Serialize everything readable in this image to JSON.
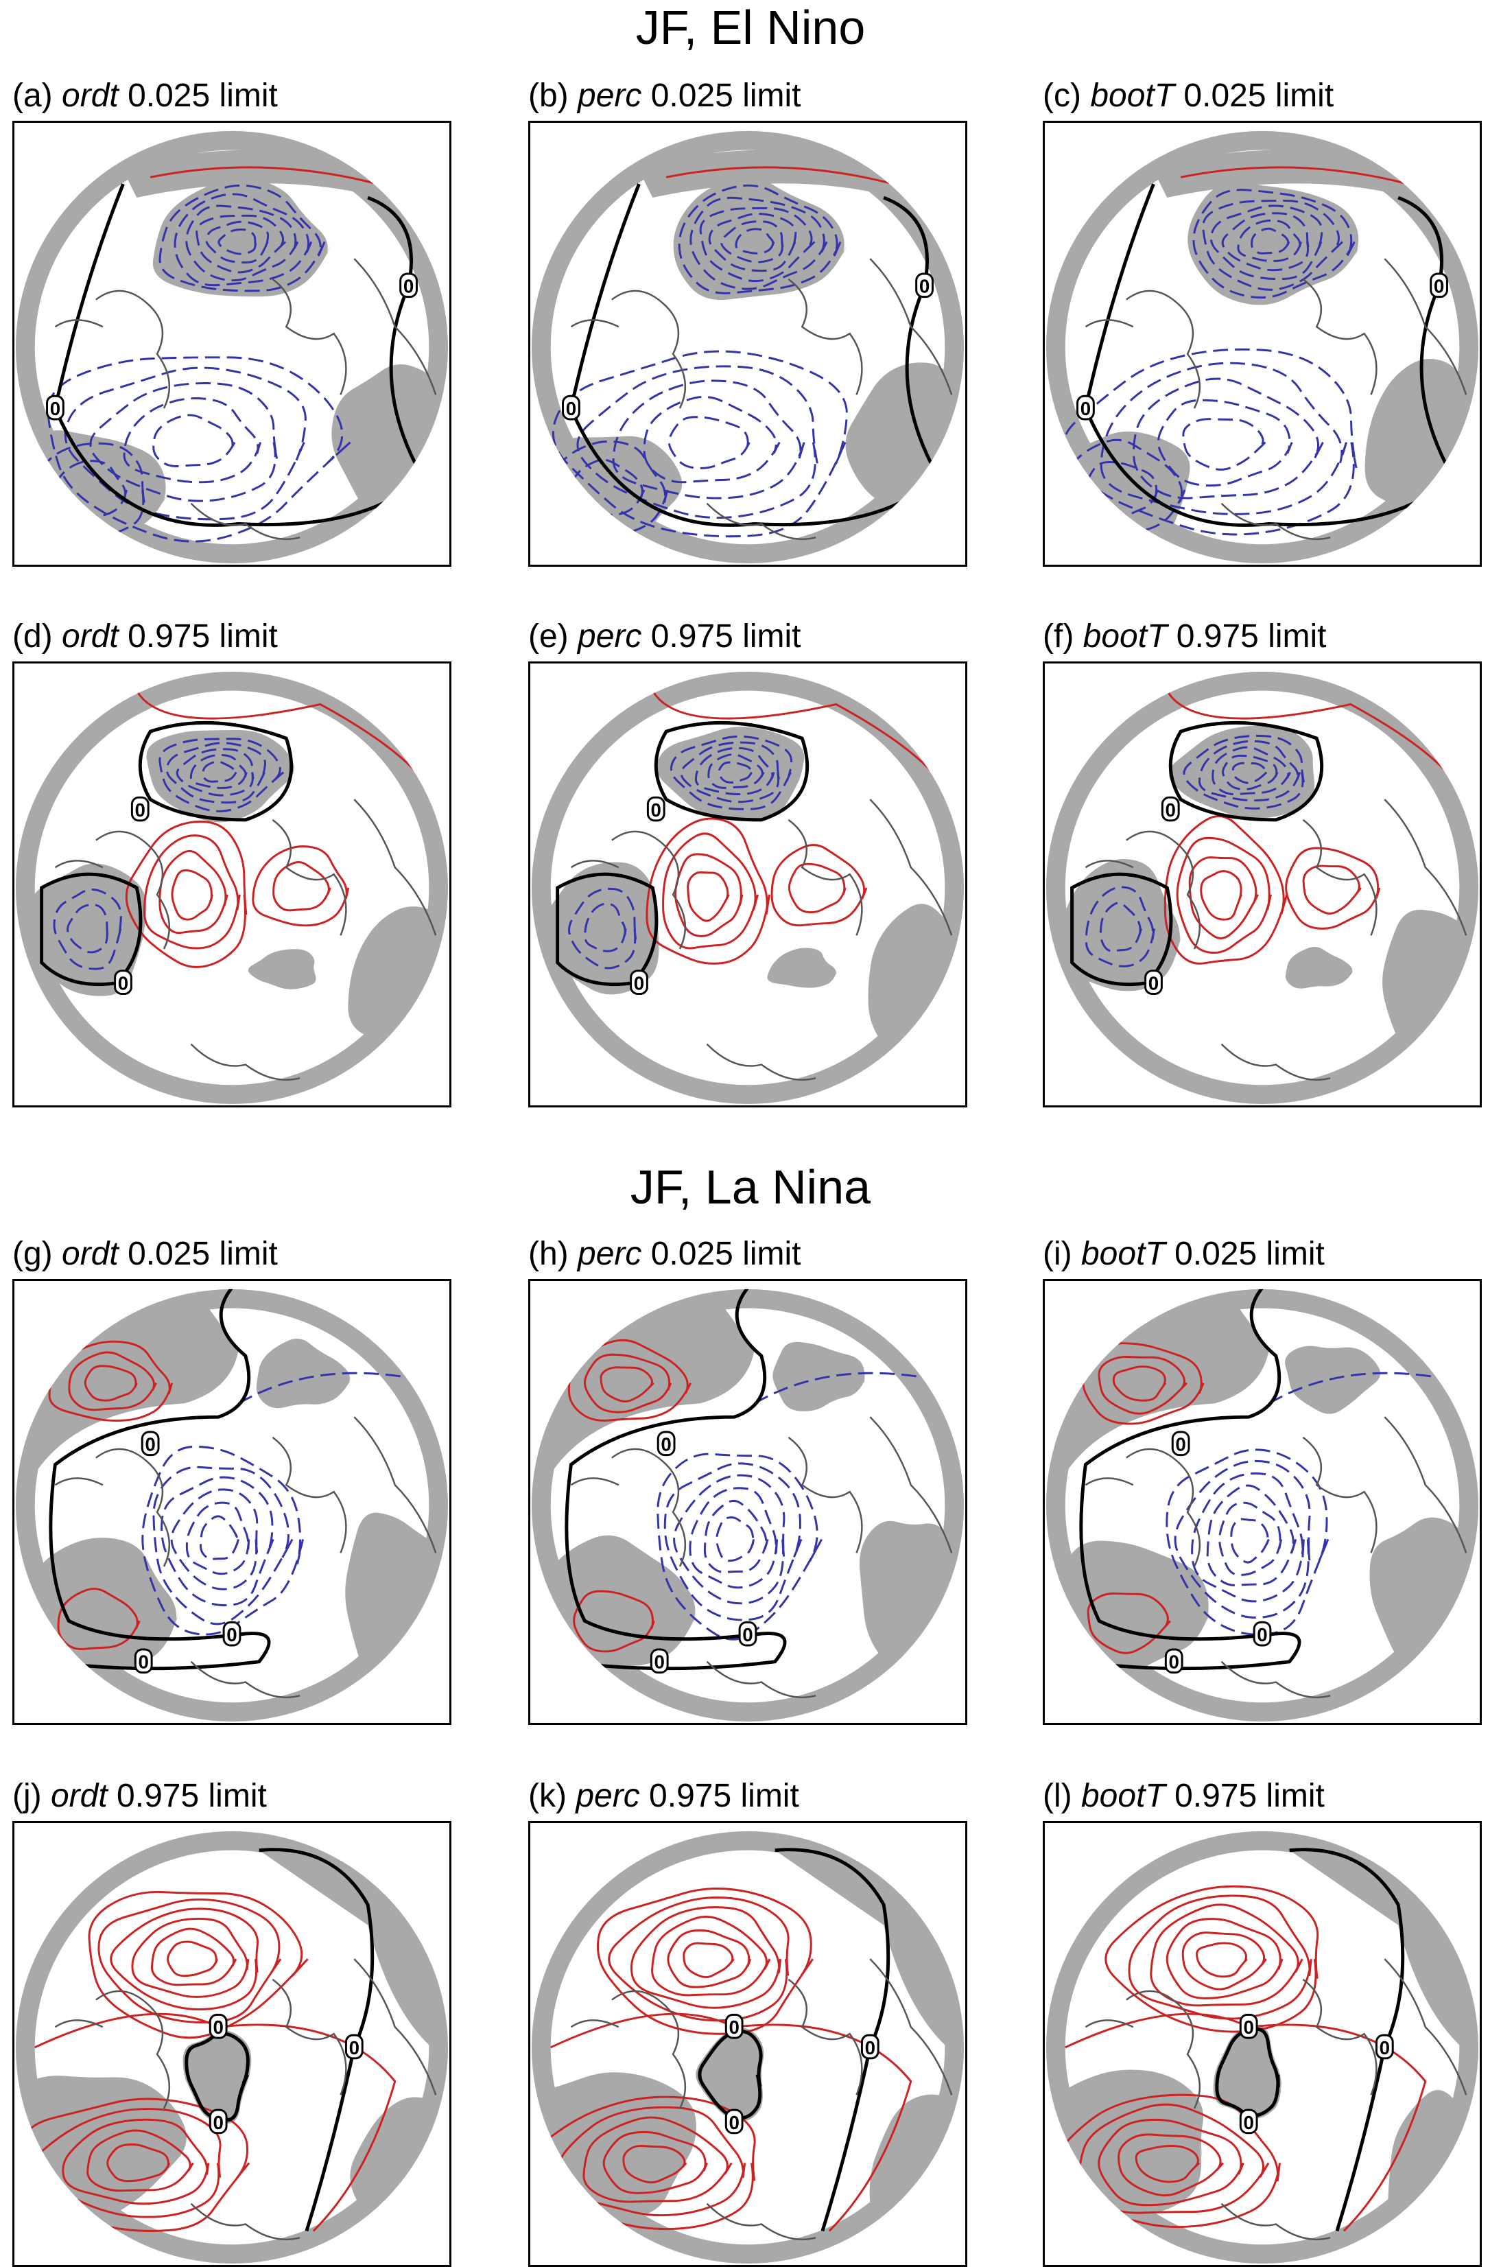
{
  "sections": [
    {
      "title": "JF, El Nino"
    },
    {
      "title": "JF, La Nina"
    }
  ],
  "panels": [
    {
      "letter": "(a)",
      "method": "ordt",
      "limit": "0.025 limit",
      "kind": "neg"
    },
    {
      "letter": "(b)",
      "method": "perc",
      "limit": "0.025 limit",
      "kind": "neg"
    },
    {
      "letter": "(c)",
      "method": "bootT",
      "limit": "0.025 limit",
      "kind": "neg"
    },
    {
      "letter": "(d)",
      "method": "ordt",
      "limit": "0.975 limit",
      "kind": "pos"
    },
    {
      "letter": "(e)",
      "method": "perc",
      "limit": "0.975 limit",
      "kind": "pos"
    },
    {
      "letter": "(f)",
      "method": "bootT",
      "limit": "0.975 limit",
      "kind": "pos"
    },
    {
      "letter": "(g)",
      "method": "ordt",
      "limit": "0.025 limit",
      "kind": "mixed"
    },
    {
      "letter": "(h)",
      "method": "perc",
      "limit": "0.025 limit",
      "kind": "mixed"
    },
    {
      "letter": "(i)",
      "method": "bootT",
      "limit": "0.025 limit",
      "kind": "mixed"
    },
    {
      "letter": "(j)",
      "method": "ordt",
      "limit": "0.975 limit",
      "kind": "strongpos"
    },
    {
      "letter": "(k)",
      "method": "perc",
      "limit": "0.975 limit",
      "kind": "strongpos"
    },
    {
      "letter": "(l)",
      "method": "bootT",
      "limit": "0.975 limit",
      "kind": "strongpos"
    }
  ],
  "zero_label": "0",
  "colors": {
    "positive_contour": "#cc2222",
    "negative_contour": "#3333aa",
    "zero_contour": "#000000",
    "coastline": "#555555",
    "significance_shading": "#a9a9a9"
  }
}
